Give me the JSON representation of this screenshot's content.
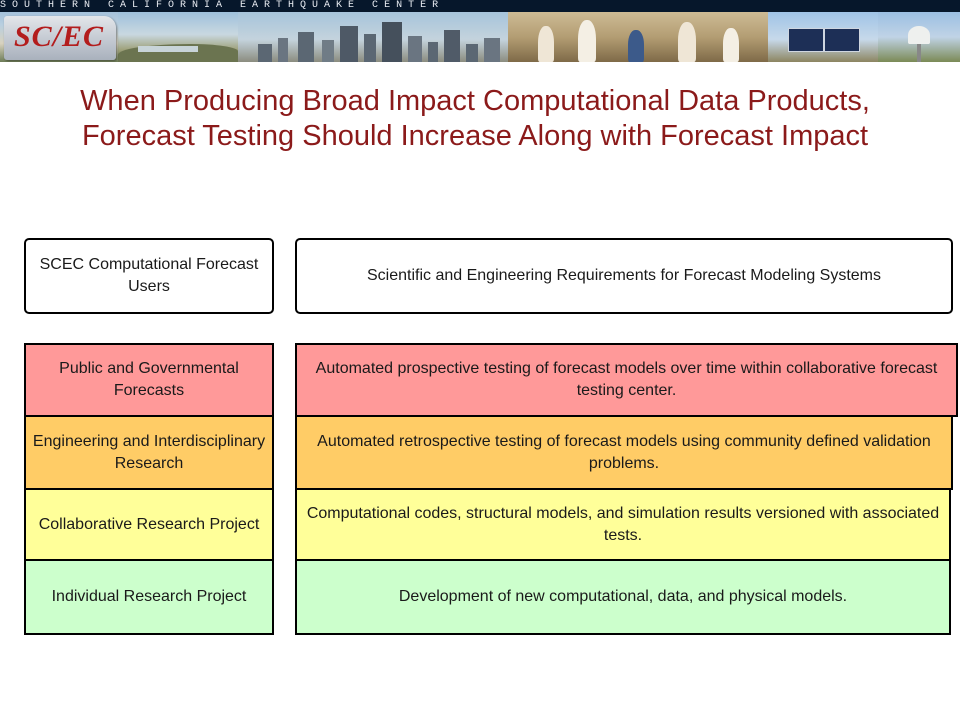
{
  "banner": {
    "org_text": "S O U T H E R N   C A L I F O R N I A   E A R T H Q U A K E   C E N T E R",
    "logo_text": "SC/EC"
  },
  "title": "When Producing Broad Impact Computational Data Products, Forecast Testing Should Increase Along with Forecast Impact",
  "columns": {
    "left_header": "SCEC Computational Forecast Users",
    "right_header": "Scientific and Engineering Requirements for Forecast Modeling Systems"
  },
  "tiers": [
    {
      "user": "Public and Governmental Forecasts",
      "requirement": "Automated prospective testing of forecast models over time within collaborative forecast testing center.",
      "color": "#ff9999"
    },
    {
      "user": "Engineering and Interdisciplinary Research",
      "requirement": "Automated retrospective testing of forecast models using community defined validation problems.",
      "color": "#ffcc66"
    },
    {
      "user": "Collaborative Research Project",
      "requirement": "Computational codes, structural models, and simulation results versioned with associated tests.",
      "color": "#ffff99"
    },
    {
      "user": "Individual Research Project",
      "requirement": "Development of new computational, data, and physical models.",
      "color": "#ccffcc"
    }
  ],
  "colors": {
    "title": "#8b1a1a",
    "banner_band": "#06172b"
  }
}
